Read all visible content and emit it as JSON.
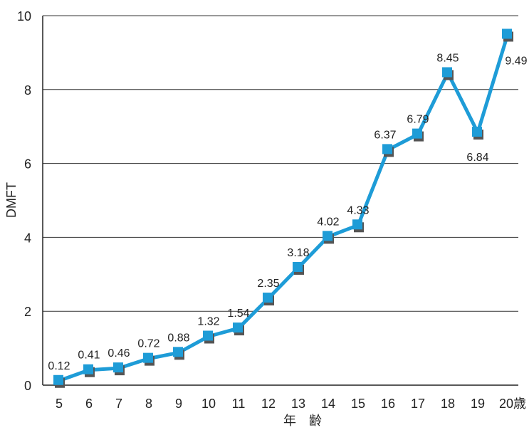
{
  "chart_data": {
    "type": "line",
    "x": [
      "5",
      "6",
      "7",
      "8",
      "9",
      "10",
      "11",
      "12",
      "13",
      "14",
      "15",
      "16",
      "17",
      "18",
      "19",
      "20歳"
    ],
    "series": [
      {
        "values": [
          0.12,
          0.41,
          0.46,
          0.72,
          0.88,
          1.32,
          1.54,
          2.35,
          3.18,
          4.02,
          4.33,
          6.37,
          6.79,
          8.45,
          6.84,
          9.49
        ],
        "color": "#1e9cd7",
        "shadow_color": "#555555"
      }
    ],
    "data_labels": [
      "0.12",
      "0.41",
      "0.46",
      "0.72",
      "0.88",
      "1.32",
      "1.54",
      "2.35",
      "3.18",
      "4.02",
      "4.33",
      "6.37",
      "6.79",
      "8.45",
      "6.84",
      "9.49"
    ],
    "y_ticks": [
      "0",
      "2",
      "4",
      "6",
      "8",
      "10"
    ],
    "ylim": [
      0,
      10
    ],
    "ylabel": "DMFT",
    "xlabel": "年　齢",
    "grid": "horizontal",
    "legend": "none"
  }
}
